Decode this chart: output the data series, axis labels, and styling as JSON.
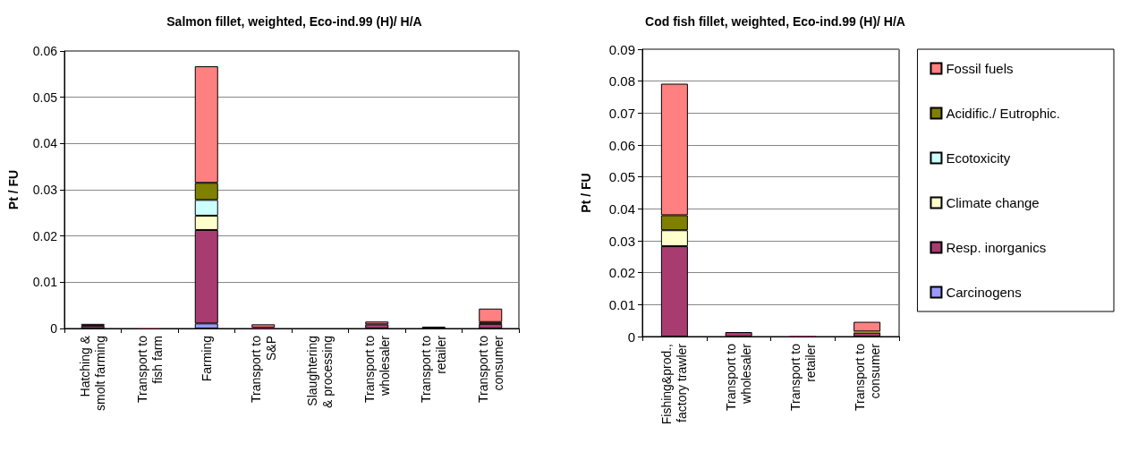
{
  "chart_data": [
    {
      "type": "bar",
      "stacked": true,
      "title": "Salmon fillet, weighted, Eco-ind.99 (H)/ H/A",
      "ylabel": "Pt / FU",
      "categories": [
        "Hatching &\nsmolt farming",
        "Transport to\nfish farm",
        "Farming",
        "Transport to\nS&P",
        "Slaughtering\n& processing",
        "Transport to\nwholesaler",
        "Transport to\nretailer",
        "Transport to\nconsumer"
      ],
      "series": [
        {
          "color": "#9999ff",
          "values": [
            0,
            0,
            0.0011,
            0,
            0,
            0,
            0,
            0
          ]
        },
        {
          "color": "#a83c70",
          "values": [
            0.0006,
            0.0001,
            0.0202,
            0.0002,
            0,
            0.0009,
            0.0004,
            0.001
          ]
        },
        {
          "color": "#ffffcc",
          "values": [
            0,
            0,
            0.0031,
            0,
            0,
            0,
            0,
            0
          ]
        },
        {
          "color": "#ccffff",
          "values": [
            0,
            0,
            0.0034,
            0,
            0,
            0,
            0,
            0
          ]
        },
        {
          "color": "#808000",
          "values": [
            0,
            0,
            0.0037,
            0,
            0,
            0,
            0,
            0.0004
          ]
        },
        {
          "color": "#ff8080",
          "values": [
            0.0004,
            0.0001,
            0.0252,
            0.0007,
            0,
            0.0006,
            0,
            0.0029
          ]
        }
      ],
      "ylim": [
        0,
        0.06
      ],
      "yticks": [
        0,
        0.01,
        0.02,
        0.03,
        0.04,
        0.05,
        0.06
      ],
      "grid": "y",
      "legend": false
    },
    {
      "type": "bar",
      "stacked": true,
      "title": "Cod fish fillet, weighted, Eco-ind.99 (H)/ H/A",
      "ylabel": "Pt / FU",
      "categories": [
        "Fishing&prod.,\nfactory trawler",
        "Transport to\nwholesaler",
        "Transport to\nretailer",
        "Transport to\nconsumer"
      ],
      "series": [
        {
          "name": "Carcinogens",
          "color": "#9999ff",
          "values": [
            0,
            0,
            0,
            0
          ]
        },
        {
          "name": "Resp. inorganics",
          "color": "#a83c70",
          "values": [
            0.0283,
            0.0014,
            0.0003,
            0.0012
          ]
        },
        {
          "name": "Climate change",
          "color": "#ffffcc",
          "values": [
            0.005,
            0,
            0,
            0
          ]
        },
        {
          "name": "Ecotoxicity",
          "color": "#ccffff",
          "values": [
            0,
            0,
            0,
            0
          ]
        },
        {
          "name": "Acidific./ Eutrophic.",
          "color": "#808000",
          "values": [
            0.0047,
            0,
            0,
            0.0004
          ]
        },
        {
          "name": "Fossil fuels",
          "color": "#ff8080",
          "values": [
            0.0412,
            0,
            0,
            0.003
          ]
        }
      ],
      "ylim": [
        0,
        0.09
      ],
      "yticks": [
        0,
        0.01,
        0.02,
        0.03,
        0.04,
        0.05,
        0.06,
        0.07,
        0.08,
        0.09
      ],
      "grid": "y",
      "legend": "right"
    }
  ]
}
